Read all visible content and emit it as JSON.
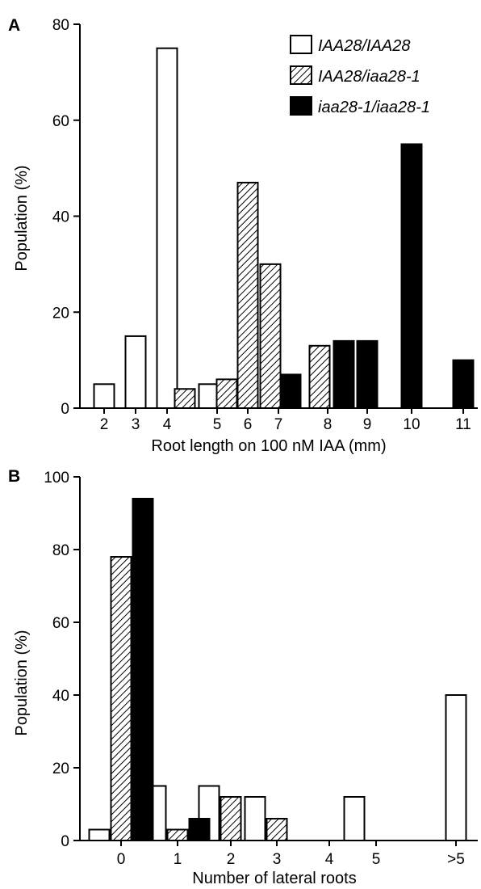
{
  "chart_data": [
    {
      "type": "bar",
      "panel_label": "A",
      "xlabel": "Root length on 100 nM IAA (mm)",
      "ylabel": "Population (%)",
      "ylim": [
        0,
        80
      ],
      "yticks": [
        "0",
        "20",
        "40",
        "60",
        "80"
      ],
      "categories": [
        "2",
        "3",
        "4",
        "5",
        "6",
        "7",
        "8",
        "9",
        "10",
        "11"
      ],
      "legend_position": "top-right",
      "series": [
        {
          "name": "IAA28/IAA28",
          "values": [
            5,
            15,
            75,
            5,
            null,
            null,
            null,
            null,
            null,
            null
          ]
        },
        {
          "name": "IAA28/iaa28-1",
          "values": [
            null,
            null,
            4,
            6,
            47,
            30,
            13,
            null,
            null,
            null
          ]
        },
        {
          "name": "iaa28-1/iaa28-1",
          "values": [
            null,
            null,
            null,
            null,
            null,
            7,
            14,
            14,
            55,
            10
          ]
        }
      ]
    },
    {
      "type": "bar",
      "panel_label": "B",
      "xlabel": "Number of lateral roots",
      "ylabel": "Population (%)",
      "ylim": [
        0,
        100
      ],
      "yticks": [
        "0",
        "20",
        "40",
        "60",
        "80",
        "100"
      ],
      "categories": [
        "0",
        "1",
        "2",
        "3",
        "4",
        "5",
        ">5"
      ],
      "series": [
        {
          "name": "IAA28/IAA28",
          "values": [
            3,
            15,
            15,
            12,
            0,
            12,
            40
          ]
        },
        {
          "name": "IAA28/iaa28-1",
          "values": [
            78,
            3,
            12,
            6,
            0,
            0,
            0
          ]
        },
        {
          "name": "iaa28-1/iaa28-1",
          "values": [
            94,
            6,
            0,
            0,
            0,
            0,
            0
          ]
        }
      ]
    }
  ]
}
